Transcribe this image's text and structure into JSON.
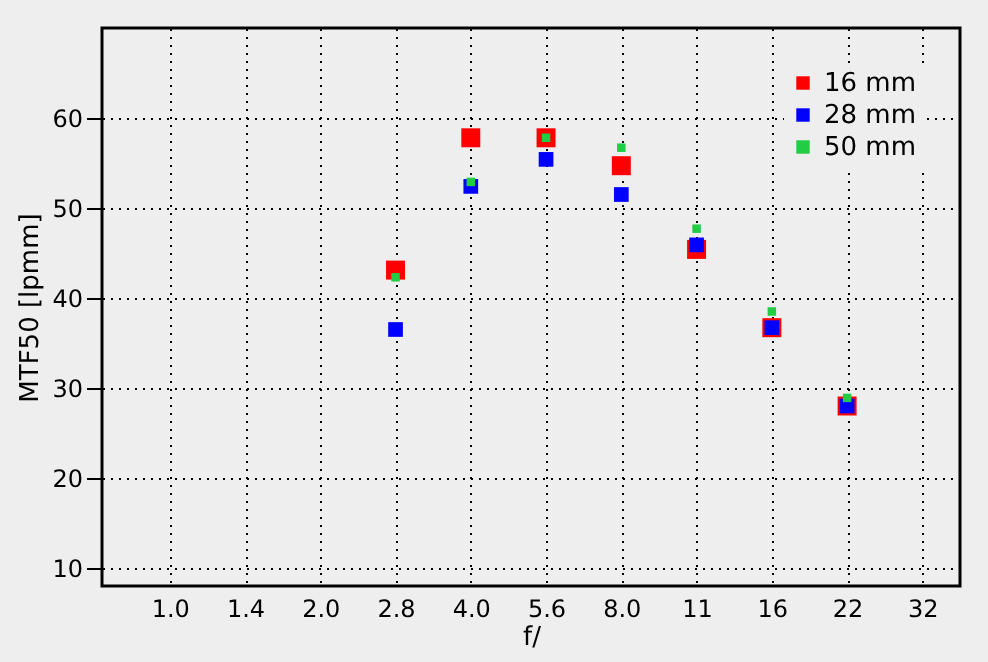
{
  "chart_data": {
    "type": "scatter",
    "xlabel": "f/",
    "ylabel": "MTF50 [lpmm]",
    "categories": [
      "1.0",
      "1.4",
      "2.0",
      "2.8",
      "4.0",
      "5.6",
      "8.0",
      "11",
      "16",
      "22",
      "32"
    ],
    "series": [
      {
        "name": "16 mm",
        "color": "#ff0000",
        "values": [
          null,
          null,
          null,
          43.1,
          57.8,
          57.8,
          54.7,
          45.4,
          36.7,
          28.0,
          null
        ]
      },
      {
        "name": "28 mm",
        "color": "#0000ff",
        "values": [
          null,
          null,
          null,
          36.5,
          52.4,
          55.4,
          51.5,
          45.9,
          36.7,
          28.0,
          null
        ]
      },
      {
        "name": "50 mm",
        "color": "#22cc44",
        "values": [
          null,
          null,
          null,
          42.3,
          52.9,
          57.8,
          56.7,
          47.7,
          38.5,
          28.9,
          null
        ]
      }
    ],
    "ylim": [
      8,
      70
    ],
    "yticks": [
      10,
      20,
      30,
      40,
      50,
      60
    ],
    "grid": true,
    "legend": "top right",
    "marker": "square"
  }
}
